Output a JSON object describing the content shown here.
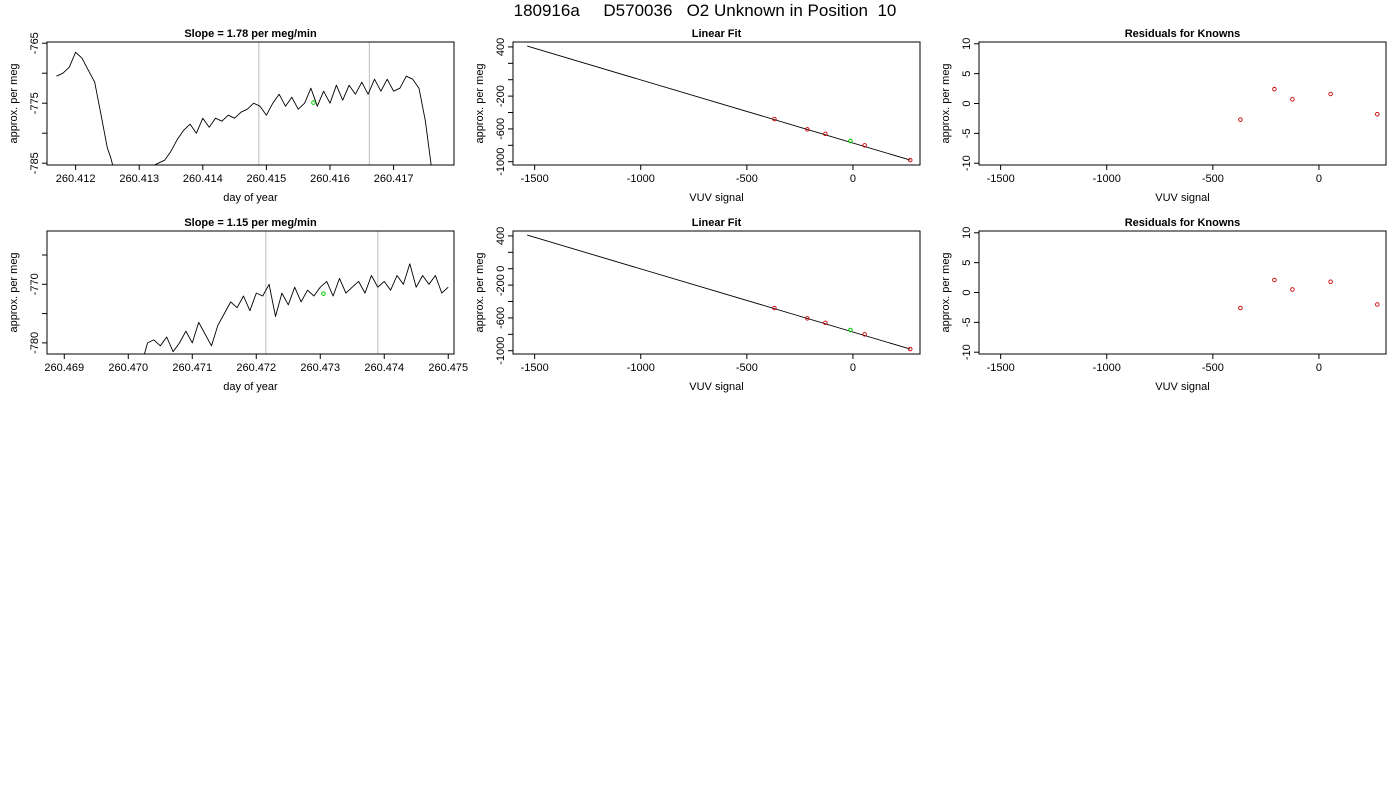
{
  "page_title": "180916a     D570036   O2 Unknown in Position  10",
  "colors": {
    "line": "#000000",
    "known_point": "#cc0000",
    "unknown_point": "#00cc00",
    "vline": "#c8c8c8"
  },
  "chart_data": [
    {
      "id": "r1_timeseries",
      "type": "line",
      "title": "Slope =  1.78  per meg/min",
      "xlabel": "day of year",
      "ylabel": "approx. per meg",
      "xlim": [
        260.41155,
        260.41795
      ],
      "ylim": [
        -785.3,
        -764.8
      ],
      "xticks": [
        260.412,
        260.413,
        260.414,
        260.415,
        260.416,
        260.417
      ],
      "xtick_labels": [
        "260.412",
        "260.413",
        "260.414",
        "260.415",
        "260.416",
        "260.417"
      ],
      "yticks": [
        -785,
        -780,
        -775,
        -770,
        -765
      ],
      "ytick_labels": [
        "-785",
        "",
        "-775",
        "",
        "-765"
      ],
      "vlines": [
        260.41488,
        260.41662
      ],
      "series": [
        {
          "x": [
            260.4117,
            260.4118,
            260.4119,
            260.412,
            260.4121,
            260.4122,
            260.4123,
            260.4124,
            260.4125,
            260.41255,
            260.4126,
            260.4127,
            260.4128,
            260.4129,
            260.413,
            260.4131,
            260.4132,
            260.4133,
            260.4134,
            260.4135,
            260.4136,
            260.4137,
            260.4138,
            260.4139,
            260.414,
            260.4141,
            260.4142,
            260.4143,
            260.4144,
            260.4145,
            260.4146,
            260.4147,
            260.4148,
            260.4149,
            260.415,
            260.4151,
            260.4152,
            260.4153,
            260.4154,
            260.4155,
            260.4156,
            260.4157,
            260.4158,
            260.4159,
            260.416,
            260.4161,
            260.4162,
            260.4163,
            260.4164,
            260.4165,
            260.4166,
            260.4167,
            260.4168,
            260.4169,
            260.417,
            260.4171,
            260.4172,
            260.4173,
            260.4174,
            260.4175,
            260.4176
          ],
          "y": [
            -770.5,
            -770.0,
            -769.0,
            -766.5,
            -767.5,
            -769.5,
            -771.5,
            -777.0,
            -782.5,
            -784.0,
            -786.0,
            -786.5,
            -786.5,
            -786.5,
            -786.0,
            -786.0,
            -785.5,
            -785.0,
            -784.5,
            -783.0,
            -781.0,
            -779.5,
            -778.5,
            -780.0,
            -777.5,
            -779.0,
            -777.5,
            -778.0,
            -777.0,
            -777.5,
            -776.5,
            -776.0,
            -775.0,
            -775.5,
            -777.0,
            -775.0,
            -773.5,
            -775.5,
            -774.0,
            -776.0,
            -775.0,
            -772.5,
            -775.5,
            -773.0,
            -775.0,
            -772.0,
            -774.5,
            -772.0,
            -773.5,
            -771.5,
            -773.5,
            -771.0,
            -773.0,
            -771.0,
            -773.0,
            -772.5,
            -770.5,
            -771.0,
            -772.5,
            -778.0,
            -786.0
          ]
        }
      ],
      "unknown_point": {
        "x": 260.41574,
        "y": -774.9
      }
    },
    {
      "id": "r1_linear_fit",
      "type": "scatter",
      "title": "Linear Fit",
      "xlabel": "VUV signal",
      "ylabel": "approx. per meg",
      "xlim": [
        -1602,
        316
      ],
      "ylim": [
        -1040,
        460
      ],
      "xticks": [
        -1500,
        -1000,
        -500,
        0
      ],
      "xtick_labels": [
        "-1500",
        "-1000",
        "-500",
        "0"
      ],
      "yticks": [
        -1000,
        -800,
        -600,
        -400,
        -200,
        0,
        200,
        400
      ],
      "ytick_labels": [
        "-1000",
        "",
        "-600",
        "",
        "-200",
        "",
        "",
        "400"
      ],
      "fit_line": {
        "x": [
          -1535,
          270
        ],
        "y": [
          410,
          -980
        ]
      },
      "known_points": {
        "x": [
          -370,
          -215,
          -130,
          55,
          270
        ],
        "y": [
          -480,
          -605,
          -660,
          -800,
          -980
        ]
      },
      "unknown_point": {
        "x": -12,
        "y": -748
      }
    },
    {
      "id": "r1_residuals",
      "type": "scatter",
      "title": "Residuals for Knowns",
      "xlabel": "VUV signal",
      "ylabel": "approx. per meg",
      "xlim": [
        -1602,
        316
      ],
      "ylim": [
        -10.3,
        10.3
      ],
      "xticks": [
        -1500,
        -1000,
        -500,
        0
      ],
      "xtick_labels": [
        "-1500",
        "-1000",
        "-500",
        "0"
      ],
      "yticks": [
        -10,
        -5,
        0,
        5,
        10
      ],
      "ytick_labels": [
        "-10",
        "-5",
        "0",
        "5",
        "10"
      ],
      "known_points": {
        "x": [
          -370,
          -210,
          -125,
          55,
          275
        ],
        "y": [
          -2.7,
          2.4,
          0.7,
          1.6,
          -1.8
        ]
      }
    },
    {
      "id": "r2_timeseries",
      "type": "line",
      "title": "Slope =  1.15  per meg/min",
      "xlabel": "day of year",
      "ylabel": "approx. per meg",
      "xlim": [
        260.46873,
        260.47509
      ],
      "ylim": [
        -781.9,
        -760.9
      ],
      "xticks": [
        260.469,
        260.47,
        260.471,
        260.472,
        260.473,
        260.474,
        260.475
      ],
      "xtick_labels": [
        "260.469",
        "260.470",
        "260.471",
        "260.472",
        "260.473",
        "260.474",
        "260.475"
      ],
      "yticks": [
        -780,
        -775,
        -770,
        -765
      ],
      "ytick_labels": [
        "-780",
        "",
        "-770",
        ""
      ],
      "vlines": [
        260.47215,
        260.4739
      ],
      "series": [
        {
          "x": [
            260.47025,
            260.4703,
            260.4704,
            260.4705,
            260.4706,
            260.4707,
            260.4708,
            260.4709,
            260.471,
            260.4711,
            260.4712,
            260.4713,
            260.4714,
            260.4715,
            260.4716,
            260.4717,
            260.4718,
            260.4719,
            260.472,
            260.4721,
            260.4722,
            260.4723,
            260.4724,
            260.4725,
            260.4726,
            260.4727,
            260.4728,
            260.4729,
            260.473,
            260.4731,
            260.4732,
            260.4733,
            260.4734,
            260.4735,
            260.4736,
            260.4737,
            260.4738,
            260.4739,
            260.474,
            260.4741,
            260.4742,
            260.4743,
            260.4744,
            260.4745,
            260.4746,
            260.4747,
            260.4748,
            260.4749,
            260.475
          ],
          "y": [
            -782.0,
            -780.0,
            -779.5,
            -780.5,
            -779.0,
            -781.5,
            -780.0,
            -778.0,
            -780.0,
            -776.5,
            -778.5,
            -780.5,
            -777.0,
            -775.0,
            -773.0,
            -774.0,
            -772.0,
            -774.5,
            -771.5,
            -772.0,
            -770.0,
            -775.5,
            -771.5,
            -773.5,
            -770.5,
            -773.0,
            -771.0,
            -772.0,
            -770.5,
            -769.5,
            -772.0,
            -769.0,
            -771.5,
            -770.5,
            -769.5,
            -771.5,
            -768.5,
            -770.5,
            -769.5,
            -771.0,
            -768.5,
            -770.0,
            -766.5,
            -770.5,
            -768.5,
            -770.0,
            -768.5,
            -771.5,
            -770.5
          ]
        }
      ],
      "unknown_point": {
        "x": 260.47305,
        "y": -771.6
      }
    },
    {
      "id": "r2_linear_fit",
      "type": "scatter",
      "title": "Linear Fit",
      "xlabel": "VUV signal",
      "ylabel": "approx. per meg",
      "xlim": [
        -1602,
        316
      ],
      "ylim": [
        -1040,
        460
      ],
      "xticks": [
        -1500,
        -1000,
        -500,
        0
      ],
      "xtick_labels": [
        "-1500",
        "-1000",
        "-500",
        "0"
      ],
      "yticks": [
        -1000,
        -800,
        -600,
        -400,
        -200,
        0,
        200,
        400
      ],
      "ytick_labels": [
        "-1000",
        "",
        "-600",
        "",
        "-200",
        "0",
        "",
        "400"
      ],
      "fit_line": {
        "x": [
          -1535,
          270
        ],
        "y": [
          410,
          -980
        ]
      },
      "known_points": {
        "x": [
          -370,
          -215,
          -130,
          55,
          270
        ],
        "y": [
          -480,
          -605,
          -660,
          -800,
          -980
        ]
      },
      "unknown_point": {
        "x": -12,
        "y": -748
      }
    },
    {
      "id": "r2_residuals",
      "type": "scatter",
      "title": "Residuals for Knowns",
      "xlabel": "VUV signal",
      "ylabel": "approx. per meg",
      "xlim": [
        -1602,
        316
      ],
      "ylim": [
        -10.3,
        10.3
      ],
      "xticks": [
        -1500,
        -1000,
        -500,
        0
      ],
      "xtick_labels": [
        "-1500",
        "-1000",
        "-500",
        "0"
      ],
      "yticks": [
        -10,
        -5,
        0,
        5,
        10
      ],
      "ytick_labels": [
        "-10",
        "-5",
        "0",
        "5",
        "10"
      ],
      "known_points": {
        "x": [
          -370,
          -210,
          -125,
          55,
          275
        ],
        "y": [
          -2.6,
          2.1,
          0.5,
          1.8,
          -2.0
        ]
      }
    }
  ]
}
